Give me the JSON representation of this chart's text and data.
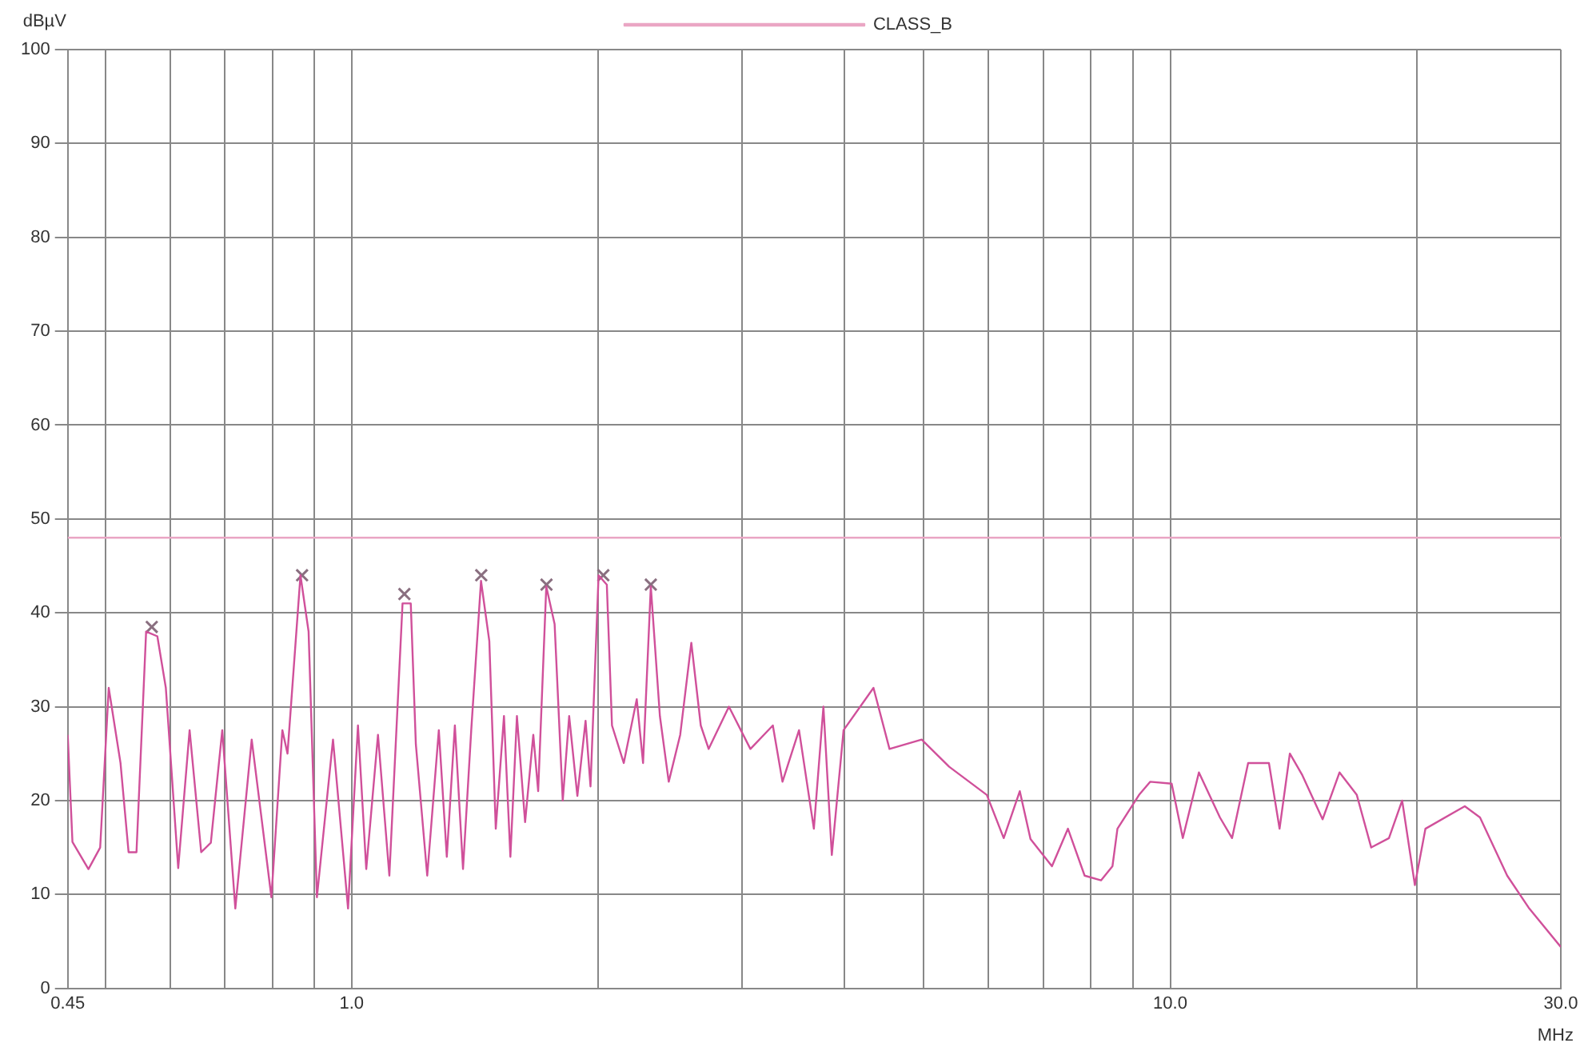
{
  "chart_data": {
    "type": "line",
    "xlabel": "MHz",
    "ylabel": "dBµV",
    "log": "x",
    "grid": true,
    "legend": "top",
    "line_style": "solid",
    "xlim": [
      0.45,
      30
    ],
    "ylim": [
      0,
      100
    ],
    "xticks": [
      {
        "value": 0.45,
        "label": "0.45"
      },
      {
        "value": 0.5,
        "label": null
      },
      {
        "value": 0.6,
        "label": null
      },
      {
        "value": 0.7,
        "label": null
      },
      {
        "value": 0.8,
        "label": null
      },
      {
        "value": 0.9,
        "label": null
      },
      {
        "value": 1,
        "label": "1.0"
      },
      {
        "value": 2,
        "label": null
      },
      {
        "value": 3,
        "label": null
      },
      {
        "value": 4,
        "label": null
      },
      {
        "value": 5,
        "label": null
      },
      {
        "value": 6,
        "label": null
      },
      {
        "value": 7,
        "label": null
      },
      {
        "value": 8,
        "label": null
      },
      {
        "value": 9,
        "label": null
      },
      {
        "value": 10,
        "label": "10.0"
      },
      {
        "value": 20,
        "label": null
      },
      {
        "value": 30,
        "label": "30.0"
      }
    ],
    "yticks": [
      0,
      10,
      20,
      30,
      40,
      50,
      60,
      70,
      80,
      90,
      100
    ],
    "series": [
      {
        "name": "CLASS_B",
        "color": "#eaa6c4",
        "x": [
          0.45,
          30
        ],
        "values": [
          48,
          48
        ]
      },
      {
        "color": "#d0509a",
        "marker": "none",
        "x": [
          0.45,
          0.456,
          0.477,
          0.493,
          0.505,
          0.522,
          0.534,
          0.546,
          0.561,
          0.579,
          0.593,
          0.614,
          0.634,
          0.655,
          0.673,
          0.695,
          0.721,
          0.755,
          0.798,
          0.823,
          0.835,
          0.866,
          0.886,
          0.907,
          0.949,
          0.99,
          1.018,
          1.042,
          1.077,
          1.112,
          1.154,
          1.181,
          1.198,
          1.237,
          1.278,
          1.307,
          1.337,
          1.368,
          1.4,
          1.439,
          1.473,
          1.5,
          1.535,
          1.563,
          1.592,
          1.629,
          1.667,
          1.69,
          1.729,
          1.77,
          1.811,
          1.844,
          1.887,
          1.931,
          1.958,
          2.003,
          2.05,
          2.08,
          2.15,
          2.23,
          2.27,
          2.32,
          2.38,
          2.44,
          2.52,
          2.6,
          2.67,
          2.73,
          2.89,
          3.07,
          3.27,
          3.36,
          3.52,
          3.67,
          3.77,
          3.86,
          3.99,
          4.34,
          4.54,
          4.97,
          5.37,
          5.97,
          6.26,
          6.55,
          6.75,
          7.17,
          7.5,
          7.86,
          8.23,
          8.5,
          8.62,
          9.16,
          9.45,
          10.04,
          10.36,
          10.84,
          11.5,
          11.9,
          12.45,
          13.2,
          13.6,
          14.0,
          14.5,
          15.35,
          16.1,
          16.9,
          17.6,
          18.5,
          19.2,
          19.9,
          20.5,
          22.9,
          23.9,
          25.8,
          27.4,
          30
        ],
        "values": [
          27,
          15.6,
          12.7,
          15,
          32,
          24,
          14.5,
          14.5,
          38,
          37.5,
          32,
          12.8,
          27.5,
          14.5,
          15.5,
          27.5,
          8.5,
          26.5,
          9.7,
          27.5,
          25,
          44,
          38,
          9.7,
          26.5,
          8.5,
          28,
          12.7,
          27,
          12,
          41,
          41,
          26,
          12,
          27.5,
          14,
          28,
          12.7,
          27.5,
          43.4,
          37,
          17,
          29,
          14,
          29,
          17.7,
          27,
          21,
          42.8,
          38.8,
          20,
          29,
          20.5,
          28.5,
          21.5,
          44,
          43,
          28,
          24,
          30.8,
          24,
          42.8,
          29,
          22,
          27,
          36.8,
          28,
          25.5,
          30,
          25.5,
          28,
          22,
          27.5,
          17,
          30,
          14.2,
          27.5,
          32,
          25.5,
          26.5,
          23.6,
          20.6,
          16,
          21,
          15.9,
          13,
          17,
          12,
          11.5,
          13,
          17,
          20.6,
          22,
          21.8,
          16,
          23,
          18.2,
          16,
          24,
          24,
          17,
          25,
          22.7,
          18,
          23,
          20.6,
          15,
          16,
          20,
          11,
          17,
          19.4,
          18.2,
          12,
          8.6,
          4.4
        ]
      },
      {
        "type": "scatter",
        "color": "#8a6f80",
        "marker": "cross",
        "x": [
          0.57,
          0.87,
          1.16,
          1.44,
          1.73,
          2.03,
          2.32
        ],
        "values": [
          38.5,
          44,
          42,
          44,
          43,
          44,
          43
        ]
      }
    ]
  }
}
